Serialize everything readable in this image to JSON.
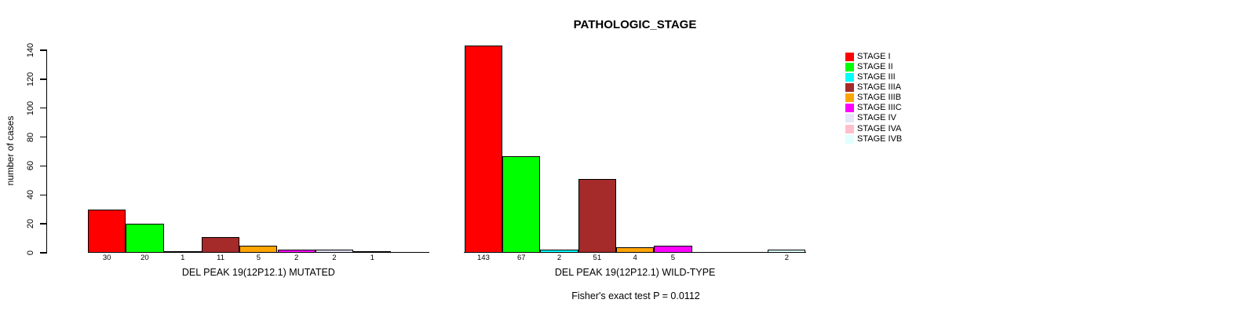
{
  "chart_data": {
    "type": "bar",
    "title": "PATHOLOGIC_STAGE",
    "ylabel": "number of cases",
    "ylim": [
      0,
      140
    ],
    "yticks": [
      0,
      20,
      40,
      60,
      80,
      100,
      120,
      140
    ],
    "grid": false,
    "legend_position": "right",
    "categories": [
      "STAGE I",
      "STAGE II",
      "STAGE III",
      "STAGE IIIA",
      "STAGE IIIB",
      "STAGE IIIC",
      "STAGE IV",
      "STAGE IVA",
      "STAGE IVB"
    ],
    "colors": [
      "#ff0000",
      "#00ff00",
      "#00ffff",
      "#a52a2a",
      "#ffa500",
      "#ff00ff",
      "#e6e6fa",
      "#ffc0cb",
      "#e0ffff"
    ],
    "series": [
      {
        "name": "DEL PEAK 19(12P12.1) MUTATED",
        "values": [
          30,
          20,
          1,
          11,
          5,
          2,
          2,
          1,
          0
        ]
      },
      {
        "name": "DEL PEAK 19(12P12.1) WILD-TYPE",
        "values": [
          143,
          67,
          2,
          51,
          4,
          5,
          0,
          0,
          2
        ]
      }
    ],
    "footnote": "Fisher's exact test P = 0.0112"
  }
}
